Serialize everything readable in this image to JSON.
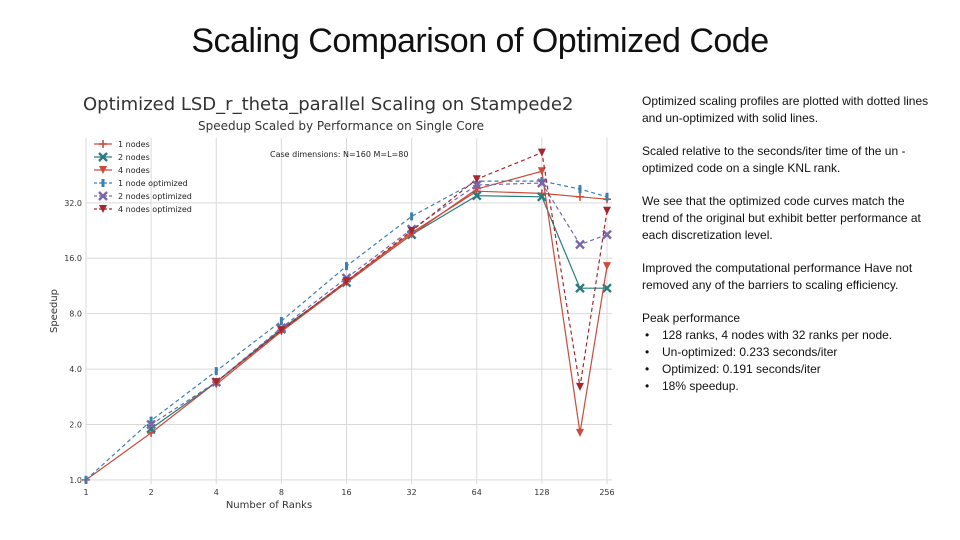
{
  "slide": {
    "title": "Scaling Comparison of Optimized Code"
  },
  "notes": {
    "p1": "Optimized scaling profiles are plotted with dotted lines and un-optimized with solid lines.",
    "p2": "Scaled relative to the seconds/iter time of the un -optimized code on a single KNL rank.",
    "p3": "We see that the optimized code curves match the trend of the original but exhibit better performance at each discretization level.",
    "p4": "Improved the computational performance Have not removed any of the barriers to scaling efficiency.",
    "peak_heading": "Peak performance",
    "peak_items": [
      "128 ranks, 4 nodes with 32 ranks per node.",
      "Un-optimized: 0.233 seconds/iter",
      "Optimized: 0.191 seconds/iter",
      "18% speedup."
    ]
  },
  "chart_data": {
    "type": "line",
    "title": "Optimized LSD_r_theta_parallel Scaling on Stampede2",
    "subtitle": "Speedup Scaled by Performance on Single Core",
    "xlabel": "Number of Ranks",
    "ylabel": "Speedup",
    "annotation": "Case dimensions: N=160 M=L=80",
    "x_scale": "log2",
    "y_scale": "log2",
    "x_ticks": [
      1,
      2,
      4,
      8,
      16,
      32,
      64,
      128,
      256
    ],
    "x_tick_labels": [
      "1",
      "2",
      "4",
      "8",
      "16",
      "32",
      "64",
      "128",
      "256"
    ],
    "y_ticks": [
      1,
      2,
      4,
      8,
      16,
      32
    ],
    "y_tick_labels": [
      "1.0",
      "2.0",
      "4.0",
      "8.0",
      "16.0",
      "32.0"
    ],
    "xlim": [
      1,
      270
    ],
    "ylim": [
      0.95,
      72
    ],
    "grid": true,
    "legend_position": "top-left",
    "series": [
      {
        "name": "1 nodes",
        "color": "#cc4b3a",
        "dash": "solid",
        "marker": "plus",
        "x": [
          1,
          2,
          4,
          8,
          16,
          32,
          64,
          128,
          192,
          256
        ],
        "y": [
          1.0,
          1.8,
          3.4,
          6.5,
          12.0,
          22.0,
          37.0,
          36.0,
          34.5,
          33.5
        ]
      },
      {
        "name": "2 nodes",
        "color": "#2a7c7c",
        "dash": "solid",
        "marker": "x",
        "x": [
          2,
          4,
          8,
          16,
          32,
          64,
          128,
          192,
          256
        ],
        "y": [
          1.9,
          3.4,
          6.6,
          11.8,
          21.5,
          35.0,
          34.5,
          11.0,
          11.0
        ]
      },
      {
        "name": "4 nodes",
        "color": "#cc4b3a",
        "dash": "solid",
        "marker": "tri-down",
        "x": [
          4,
          8,
          16,
          32,
          64,
          128,
          192,
          256
        ],
        "y": [
          3.3,
          6.4,
          11.8,
          21.5,
          38.0,
          47.5,
          1.8,
          14.5
        ]
      },
      {
        "name": "1 node optimized",
        "color": "#3a7fb0",
        "dash": "dashed",
        "marker": "bar",
        "x": [
          1,
          2,
          4,
          8,
          16,
          32,
          64,
          128,
          192,
          256
        ],
        "y": [
          1.0,
          2.1,
          3.9,
          7.3,
          14.5,
          27.0,
          42.0,
          42.0,
          38.0,
          34.5
        ]
      },
      {
        "name": "2 nodes optimized",
        "color": "#7a66a8",
        "dash": "dashed",
        "marker": "x",
        "x": [
          2,
          4,
          8,
          16,
          32,
          64,
          128,
          192,
          256
        ],
        "y": [
          2.0,
          3.4,
          6.7,
          12.5,
          23.0,
          40.0,
          41.0,
          19.0,
          21.5
        ]
      },
      {
        "name": "4 nodes optimized",
        "color": "#a8252d",
        "dash": "dashed",
        "marker": "tri-down",
        "x": [
          4,
          8,
          16,
          32,
          64,
          128,
          192,
          256
        ],
        "y": [
          3.4,
          6.5,
          12.0,
          22.5,
          43.0,
          60.0,
          3.2,
          29.0
        ]
      }
    ]
  }
}
